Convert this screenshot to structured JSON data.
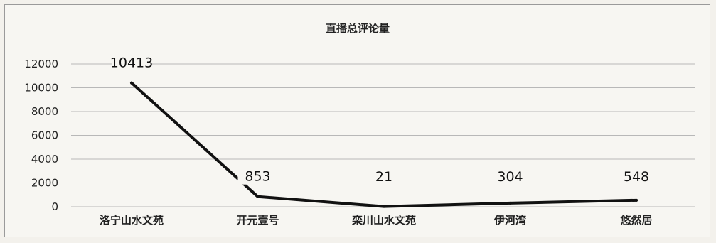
{
  "chart_data": {
    "type": "line",
    "title": "直播总评论量",
    "categories": [
      "洛宁山水文苑",
      "开元壹号",
      "栾川山水文苑",
      "伊河湾",
      "悠然居"
    ],
    "series": [
      {
        "values": [
          10413,
          853,
          21,
          304,
          548
        ],
        "color": "#111111"
      }
    ],
    "data_labels": [
      "10413",
      "853",
      "21",
      "304",
      "548"
    ],
    "y_ticks": [
      "0",
      "2000",
      "4000",
      "6000",
      "8000",
      "10000",
      "12000"
    ],
    "ylim": [
      0,
      12000
    ],
    "grid": true,
    "legend": "none"
  }
}
